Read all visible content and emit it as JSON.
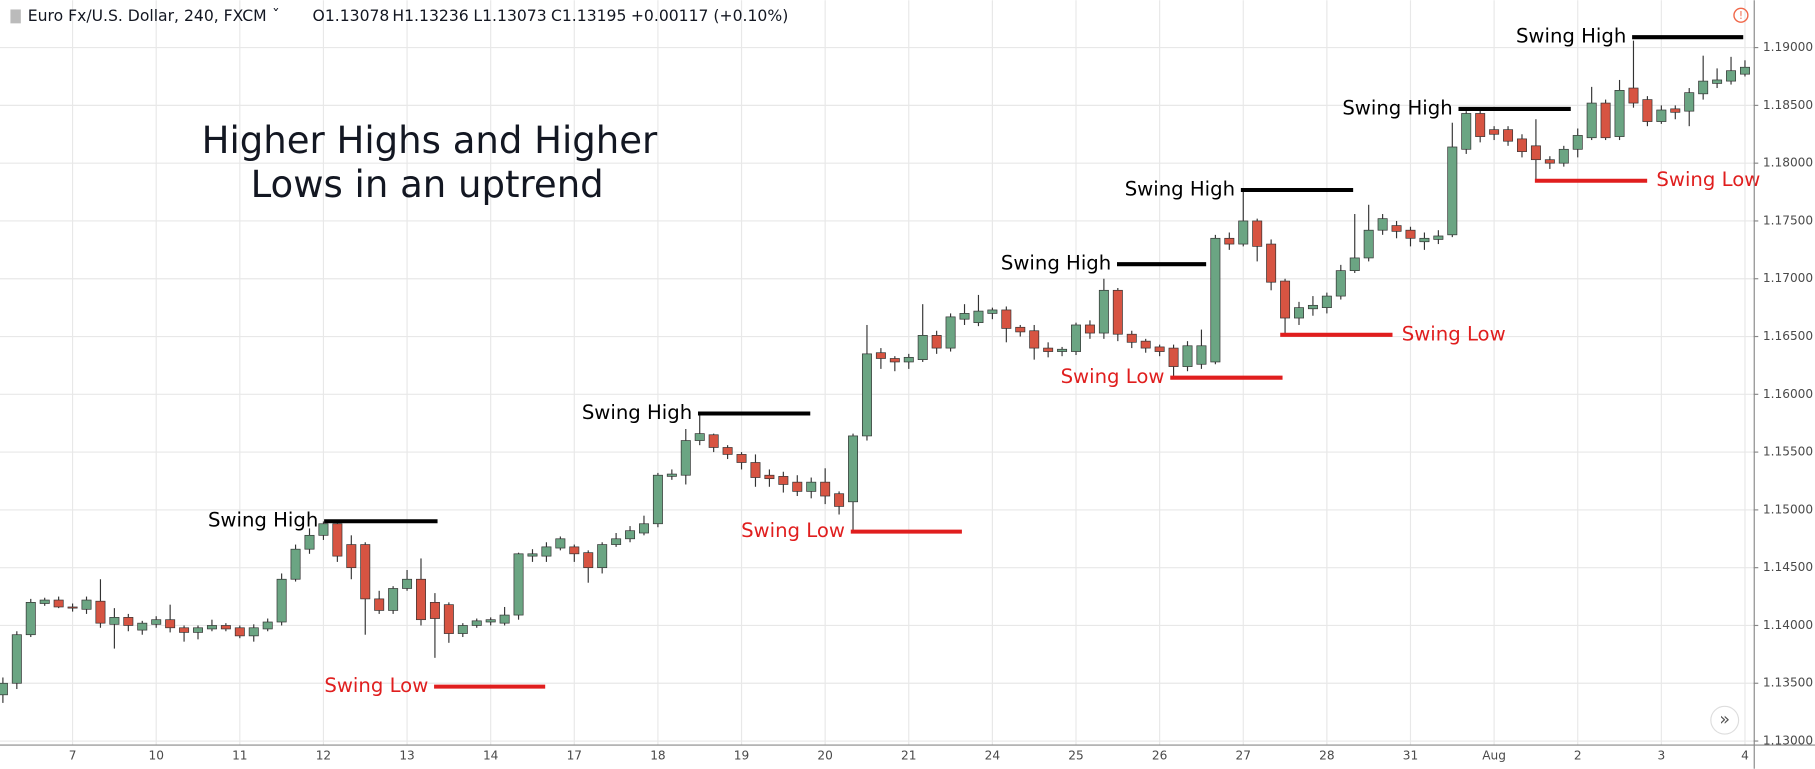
{
  "chart_data": {
    "type": "candlestick",
    "header": {
      "symbol": "Euro Fx/U.S. Dollar, 240, FXCM",
      "ohlc": [
        "O1.13078",
        "H1.13236",
        "L1.13073",
        "C1.13195"
      ],
      "change": "+0.00117 (+0.10%)"
    },
    "title": [
      "Higher Highs and Higher",
      "Lows in an uptrend"
    ],
    "up_color": "#6ba583",
    "down_color": "#d75442",
    "grid": true,
    "ylim": [
      1.1285,
      1.1941
    ],
    "yticks": [
      {
        "value": 1.13,
        "label": "1.13000"
      },
      {
        "value": 1.135,
        "label": "1.13500"
      },
      {
        "value": 1.14,
        "label": "1.14000"
      },
      {
        "value": 1.145,
        "label": "1.14500"
      },
      {
        "value": 1.15,
        "label": "1.15000"
      },
      {
        "value": 1.155,
        "label": "1.15500"
      },
      {
        "value": 1.16,
        "label": "1.16000"
      },
      {
        "value": 1.165,
        "label": "1.16500"
      },
      {
        "value": 1.17,
        "label": "1.17000"
      },
      {
        "value": 1.175,
        "label": "1.17500"
      },
      {
        "value": 1.18,
        "label": "1.18000"
      },
      {
        "value": 1.185,
        "label": "1.18500"
      },
      {
        "value": 1.19,
        "label": "1.19000"
      }
    ],
    "categories": [
      null,
      null,
      null,
      null,
      null,
      "7",
      null,
      null,
      null,
      null,
      null,
      "10",
      null,
      null,
      null,
      null,
      null,
      "11",
      null,
      null,
      null,
      null,
      null,
      "12",
      null,
      null,
      null,
      null,
      null,
      "13",
      null,
      null,
      null,
      null,
      null,
      "14",
      null,
      null,
      null,
      null,
      null,
      "17",
      null,
      null,
      null,
      null,
      null,
      "18",
      null,
      null,
      null,
      null,
      null,
      "19",
      null,
      null,
      null,
      null,
      null,
      "20",
      null,
      null,
      null,
      null,
      null,
      "21",
      null,
      null,
      null,
      null,
      null,
      "24",
      null,
      null,
      null,
      null,
      null,
      "25",
      null,
      null,
      null,
      null,
      null,
      "26",
      null,
      null,
      null,
      null,
      null,
      "27",
      null,
      null,
      null,
      null,
      null,
      "28",
      null,
      null,
      null,
      null,
      null,
      "31",
      null,
      null,
      null,
      null,
      null,
      "Aug",
      null,
      null,
      null,
      null,
      null,
      "2",
      null,
      null,
      null,
      null,
      null,
      "3",
      null,
      null,
      null,
      null,
      null,
      "4"
    ],
    "open": [
      1.134,
      1.135,
      1.1392,
      1.1419,
      1.1422,
      1.1416,
      1.1414,
      1.1421,
      1.1401,
      1.1407,
      1.1396,
      1.1401,
      1.1405,
      1.1398,
      1.1394,
      1.1397,
      1.14,
      1.1398,
      1.1391,
      1.1397,
      1.1403,
      1.144,
      1.1466,
      1.1478,
      1.1488,
      1.147,
      1.147,
      1.1423,
      1.1413,
      1.1432,
      1.144,
      1.142,
      1.1418,
      1.1393,
      1.14,
      1.1403,
      1.1402,
      1.1409,
      1.146,
      1.146,
      1.1467,
      1.1468,
      1.1463,
      1.145,
      1.147,
      1.1475,
      1.148,
      1.1488,
      1.1529,
      1.153,
      1.156,
      1.1565,
      1.1554,
      1.1548,
      1.1541,
      1.153,
      1.1529,
      1.1524,
      1.1516,
      1.1524,
      1.1514,
      1.1507,
      1.1564,
      1.1636,
      1.1631,
      1.1628,
      1.163,
      1.1651,
      1.164,
      1.1665,
      1.1662,
      1.167,
      1.1673,
      1.1658,
      1.1655,
      1.164,
      1.1637,
      1.1637,
      1.166,
      1.1653,
      1.169,
      1.1652,
      1.1646,
      1.1641,
      1.164,
      1.1624,
      1.1626,
      1.1628,
      1.1735,
      1.173,
      1.175,
      1.173,
      1.1698,
      1.1666,
      1.1674,
      1.1675,
      1.1685,
      1.1707,
      1.1718,
      1.1742,
      1.1746,
      1.1742,
      1.1732,
      1.1734,
      1.1738,
      1.1812,
      1.1843,
      1.1829,
      1.1829,
      1.1821,
      1.1815,
      1.1803,
      1.18,
      1.1812,
      1.1822,
      1.1852,
      1.1823,
      1.1865,
      1.1855,
      1.1836,
      1.1847,
      1.1845,
      1.186,
      1.1869,
      1.1871,
      1.1877
    ],
    "high": [
      1.1355,
      1.1395,
      1.1423,
      1.1424,
      1.1425,
      1.1419,
      1.1425,
      1.144,
      1.1415,
      1.141,
      1.1404,
      1.1408,
      1.1418,
      1.14,
      1.14,
      1.1405,
      1.1402,
      1.14,
      1.1401,
      1.1406,
      1.1445,
      1.147,
      1.1484,
      1.149,
      1.149,
      1.1478,
      1.1472,
      1.143,
      1.1434,
      1.1448,
      1.1458,
      1.1428,
      1.142,
      1.1402,
      1.1406,
      1.1407,
      1.1416,
      1.1463,
      1.1466,
      1.1472,
      1.1477,
      1.147,
      1.1465,
      1.1472,
      1.148,
      1.1486,
      1.1495,
      1.1532,
      1.1535,
      1.157,
      1.1582,
      1.1566,
      1.1556,
      1.155,
      1.1548,
      1.1535,
      1.1533,
      1.153,
      1.1528,
      1.1536,
      1.1516,
      1.1566,
      1.166,
      1.164,
      1.1633,
      1.1635,
      1.1678,
      1.1655,
      1.167,
      1.1678,
      1.1686,
      1.1675,
      1.1676,
      1.166,
      1.166,
      1.1645,
      1.1641,
      1.1662,
      1.1664,
      1.17,
      1.1692,
      1.1655,
      1.1648,
      1.1643,
      1.1643,
      1.1646,
      1.1656,
      1.1738,
      1.174,
      1.1776,
      1.1752,
      1.1734,
      1.17,
      1.168,
      1.1685,
      1.1688,
      1.1712,
      1.1756,
      1.1764,
      1.1756,
      1.175,
      1.1745,
      1.174,
      1.1742,
      1.1835,
      1.1845,
      1.1846,
      1.1832,
      1.1832,
      1.1825,
      1.1838,
      1.1806,
      1.1815,
      1.183,
      1.1866,
      1.1855,
      1.1872,
      1.1906,
      1.1858,
      1.185,
      1.185,
      1.1865,
      1.1893,
      1.1882,
      1.1892,
      1.1889
    ],
    "low": [
      1.1333,
      1.1345,
      1.139,
      1.1417,
      1.1415,
      1.1412,
      1.141,
      1.1398,
      1.138,
      1.1395,
      1.1392,
      1.1398,
      1.1394,
      1.1386,
      1.1388,
      1.1395,
      1.1395,
      1.1389,
      1.1386,
      1.1395,
      1.14,
      1.1438,
      1.1462,
      1.1474,
      1.1455,
      1.144,
      1.1392,
      1.141,
      1.141,
      1.143,
      1.14,
      1.1372,
      1.1385,
      1.139,
      1.1398,
      1.14,
      1.14,
      1.1405,
      1.1455,
      1.1455,
      1.1465,
      1.1455,
      1.1437,
      1.1445,
      1.1468,
      1.1472,
      1.1478,
      1.1485,
      1.1526,
      1.1522,
      1.1556,
      1.155,
      1.1544,
      1.1535,
      1.152,
      1.152,
      1.1515,
      1.1512,
      1.151,
      1.1505,
      1.1496,
      1.148,
      1.156,
      1.1622,
      1.162,
      1.1622,
      1.1628,
      1.1635,
      1.1637,
      1.166,
      1.1659,
      1.1665,
      1.1645,
      1.165,
      1.163,
      1.1632,
      1.1633,
      1.1634,
      1.1648,
      1.1648,
      1.1646,
      1.164,
      1.1636,
      1.1633,
      1.1615,
      1.162,
      1.1622,
      1.1626,
      1.1725,
      1.1728,
      1.1715,
      1.169,
      1.1652,
      1.166,
      1.1668,
      1.167,
      1.1682,
      1.1705,
      1.1715,
      1.1738,
      1.1735,
      1.1728,
      1.1725,
      1.173,
      1.1736,
      1.1808,
      1.1818,
      1.182,
      1.1815,
      1.1805,
      1.1785,
      1.1795,
      1.1797,
      1.1805,
      1.182,
      1.182,
      1.182,
      1.1848,
      1.1832,
      1.1834,
      1.1838,
      1.1832,
      1.1855,
      1.1865,
      1.1868,
      1.1875
    ],
    "close": [
      1.135,
      1.1392,
      1.142,
      1.1422,
      1.1416,
      1.1415,
      1.1422,
      1.1402,
      1.1407,
      1.14,
      1.1402,
      1.1405,
      1.1398,
      1.1394,
      1.1398,
      1.14,
      1.1397,
      1.1391,
      1.1398,
      1.1403,
      1.144,
      1.1466,
      1.1478,
      1.1488,
      1.146,
      1.145,
      1.1423,
      1.1413,
      1.1432,
      1.144,
      1.1405,
      1.1406,
      1.1393,
      1.14,
      1.1404,
      1.1405,
      1.1409,
      1.1462,
      1.1462,
      1.1468,
      1.1475,
      1.1462,
      1.145,
      1.147,
      1.1475,
      1.1482,
      1.1488,
      1.153,
      1.1531,
      1.156,
      1.1566,
      1.1554,
      1.1548,
      1.1541,
      1.1528,
      1.1527,
      1.1522,
      1.1516,
      1.1524,
      1.1512,
      1.1503,
      1.1564,
      1.1635,
      1.1631,
      1.1628,
      1.1632,
      1.1651,
      1.164,
      1.1667,
      1.167,
      1.1672,
      1.1673,
      1.1657,
      1.1654,
      1.164,
      1.1637,
      1.1639,
      1.166,
      1.1653,
      1.169,
      1.1652,
      1.1645,
      1.164,
      1.1637,
      1.1624,
      1.1642,
      1.1642,
      1.1735,
      1.173,
      1.175,
      1.1728,
      1.1697,
      1.1666,
      1.1675,
      1.1677,
      1.1685,
      1.1707,
      1.1718,
      1.1742,
      1.1752,
      1.1741,
      1.1735,
      1.1735,
      1.1737,
      1.1814,
      1.1843,
      1.1823,
      1.1825,
      1.1819,
      1.181,
      1.1803,
      1.18,
      1.1812,
      1.1824,
      1.1852,
      1.1822,
      1.1863,
      1.1852,
      1.1836,
      1.1846,
      1.1844,
      1.1861,
      1.1871,
      1.1872,
      1.188,
      1.1883
    ],
    "annotations": [
      {
        "text": "Swing High",
        "value": 1.14902,
        "color": "#000000"
      },
      {
        "text": "Swing Low",
        "value": 1.13471,
        "color": "#e01e1e"
      },
      {
        "text": "Swing High",
        "value": 1.15834,
        "color": "#000000"
      },
      {
        "text": "Swing Low",
        "value": 1.14812,
        "color": "#e01e1e"
      },
      {
        "text": "Swing High",
        "value": 1.17126,
        "color": "#000000"
      },
      {
        "text": "Swing Low",
        "value": 1.16144,
        "color": "#e01e1e"
      },
      {
        "text": "Swing High",
        "value": 1.17768,
        "color": "#000000"
      },
      {
        "text": "Swing Low",
        "value": 1.16515,
        "color": "#e01e1e"
      },
      {
        "text": "Swing High",
        "value": 1.18469,
        "color": "#000000"
      },
      {
        "text": "Swing Low",
        "value": 1.17848,
        "color": "#e01e1e"
      },
      {
        "text": "Swing High",
        "value": 1.1909,
        "color": "#000000"
      }
    ]
  }
}
